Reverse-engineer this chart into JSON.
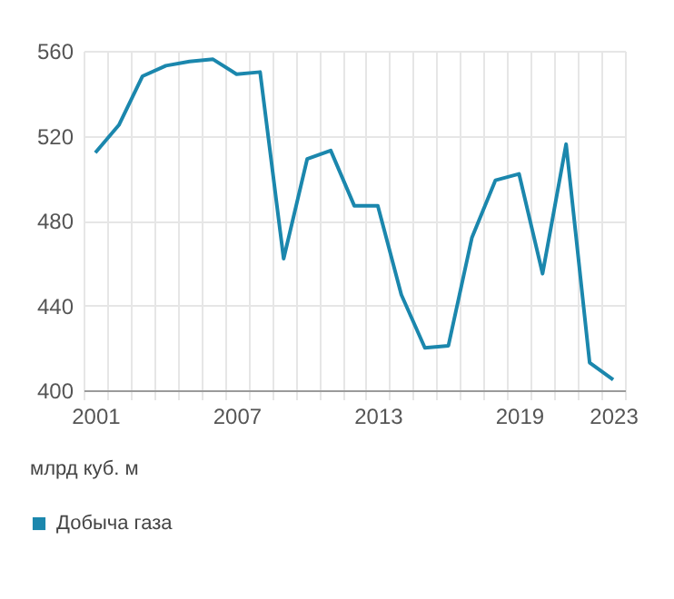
{
  "chart_data": {
    "type": "line",
    "ylabel": "млрд куб. м",
    "categories": [
      "2001",
      null,
      null,
      null,
      null,
      null,
      "2007",
      null,
      null,
      null,
      null,
      null,
      "2013",
      null,
      null,
      null,
      null,
      null,
      "2019",
      null,
      null,
      null,
      "2023"
    ],
    "series": [
      {
        "name": "Добыча газа",
        "color": "#1b87ad",
        "values": [
          512,
          525,
          548,
          553,
          555,
          556,
          549,
          550,
          462,
          509,
          513,
          487,
          487,
          445,
          420,
          421,
          472,
          499,
          502,
          455,
          516,
          413,
          405
        ]
      }
    ],
    "ylim": [
      400,
      560
    ],
    "yticks": [
      400,
      440,
      480,
      520,
      560
    ],
    "grid": true,
    "legend": "bottom left",
    "marker": "none",
    "line_style": "solid"
  }
}
